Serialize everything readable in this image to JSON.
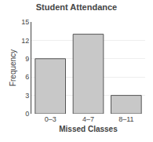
{
  "chart_data": {
    "type": "bar",
    "title": "Student Attendance",
    "xlabel": "Missed Classes",
    "ylabel": "Frequency",
    "categories": [
      "0–3",
      "4–7",
      "8–11"
    ],
    "values": [
      9,
      13,
      3
    ],
    "color": "#c8c8c8",
    "ylim": [
      0,
      15
    ],
    "yticks": [
      0,
      3,
      6,
      9,
      12,
      15
    ],
    "grid": true
  }
}
